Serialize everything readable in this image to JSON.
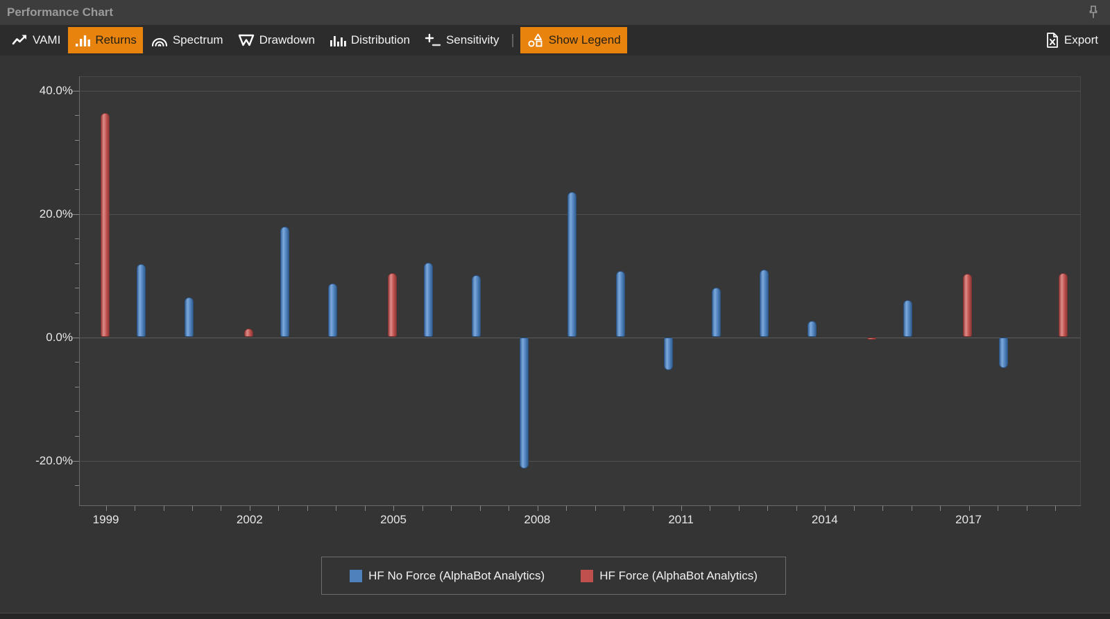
{
  "window": {
    "title": "Performance Chart"
  },
  "toolbar": {
    "items": [
      {
        "label": "VAMI",
        "icon": "trend-line-icon",
        "active": false
      },
      {
        "label": "Returns",
        "icon": "bar-chart-icon",
        "active": true
      },
      {
        "label": "Spectrum",
        "icon": "spectrum-arcs-icon",
        "active": false
      },
      {
        "label": "Drawdown",
        "icon": "drawdown-icon",
        "active": false
      },
      {
        "label": "Distribution",
        "icon": "histogram-icon",
        "active": false
      },
      {
        "label": "Sensitivity",
        "icon": "plus-minus-icon",
        "active": false
      }
    ],
    "separator": "|",
    "legend_toggle": {
      "label": "Show Legend",
      "icon": "shapes-icon",
      "active": true
    },
    "export": {
      "label": "Export",
      "icon": "excel-file-icon"
    }
  },
  "colors": {
    "accent_orange": "#E8830D",
    "series_blue": "#4F81BD",
    "series_red": "#C0504D",
    "panel_bg": "#343434",
    "titlebar_bg": "#3D3D3D",
    "toolbar_bg": "#2C2C2C"
  },
  "chart_data": {
    "type": "bar",
    "title": "",
    "xlabel": "",
    "ylabel": "",
    "x": [
      1999,
      2000,
      2001,
      2002,
      2003,
      2004,
      2005,
      2006,
      2007,
      2008,
      2009,
      2010,
      2011,
      2012,
      2013,
      2014,
      2015,
      2016,
      2017,
      2018,
      2019
    ],
    "series": [
      {
        "name": "HF No Force (AlphaBot Analytics)",
        "color": "#4F81BD",
        "values": [
          null,
          11.8,
          6.5,
          null,
          17.9,
          8.7,
          null,
          12.1,
          10.1,
          -21.3,
          23.5,
          10.7,
          -5.3,
          8.0,
          11.0,
          2.6,
          null,
          6.0,
          null,
          -5.0,
          null
        ]
      },
      {
        "name": "HF Force (AlphaBot Analytics)",
        "color": "#C0504D",
        "values": [
          36.3,
          null,
          null,
          1.4,
          null,
          null,
          10.4,
          null,
          null,
          null,
          null,
          null,
          null,
          null,
          null,
          null,
          -0.4,
          null,
          10.3,
          null,
          10.4
        ]
      }
    ],
    "ylim": [
      -27,
      42
    ],
    "yticks": [
      {
        "value": 40,
        "label": "40.0%"
      },
      {
        "value": 20,
        "label": "20.0%"
      },
      {
        "value": 0,
        "label": "0.0%"
      },
      {
        "value": -20,
        "label": "-20.0%"
      }
    ],
    "xticks": [
      {
        "value": 1999,
        "label": "1999"
      },
      {
        "value": 2002,
        "label": "2002"
      },
      {
        "value": 2005,
        "label": "2005"
      },
      {
        "value": 2008,
        "label": "2008"
      },
      {
        "value": 2011,
        "label": "2011"
      },
      {
        "value": 2014,
        "label": "2014"
      },
      {
        "value": 2017,
        "label": "2017"
      }
    ],
    "grid": true,
    "legend_position": "bottom"
  }
}
